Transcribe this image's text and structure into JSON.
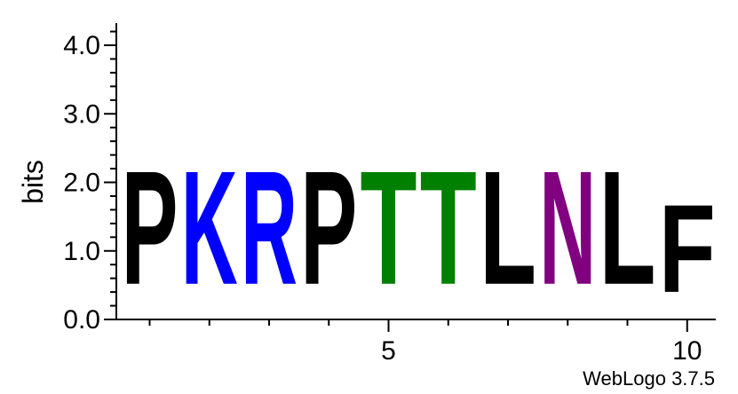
{
  "chart_data": {
    "type": "sequence-logo",
    "ylabel": "bits",
    "ylim": [
      0,
      4.3
    ],
    "y_ticks": [
      "0.0",
      "1.0",
      "2.0",
      "3.0",
      "4.0"
    ],
    "y_tick_values": [
      0,
      1,
      2,
      3,
      4
    ],
    "x_ticks": [
      "5",
      "10"
    ],
    "x_tick_values": [
      5,
      10
    ],
    "positions": [
      {
        "pos": 1,
        "letter": "P",
        "bits": 2.65,
        "color": "#000000"
      },
      {
        "pos": 2,
        "letter": "K",
        "bits": 2.65,
        "color": "#0000ff"
      },
      {
        "pos": 3,
        "letter": "R",
        "bits": 2.65,
        "color": "#0000ff"
      },
      {
        "pos": 4,
        "letter": "P",
        "bits": 2.65,
        "color": "#000000"
      },
      {
        "pos": 5,
        "letter": "T",
        "bits": 2.65,
        "color": "#008000"
      },
      {
        "pos": 6,
        "letter": "T",
        "bits": 2.65,
        "color": "#008000"
      },
      {
        "pos": 7,
        "letter": "L",
        "bits": 2.65,
        "color": "#000000"
      },
      {
        "pos": 8,
        "letter": "N",
        "bits": 2.65,
        "color": "#800080"
      },
      {
        "pos": 9,
        "letter": "L",
        "bits": 2.65,
        "color": "#000000"
      },
      {
        "pos": 10,
        "letter": "F",
        "bits": 2.05,
        "color": "#000000"
      }
    ]
  },
  "footer": {
    "credit": "WebLogo 3.7.5"
  }
}
